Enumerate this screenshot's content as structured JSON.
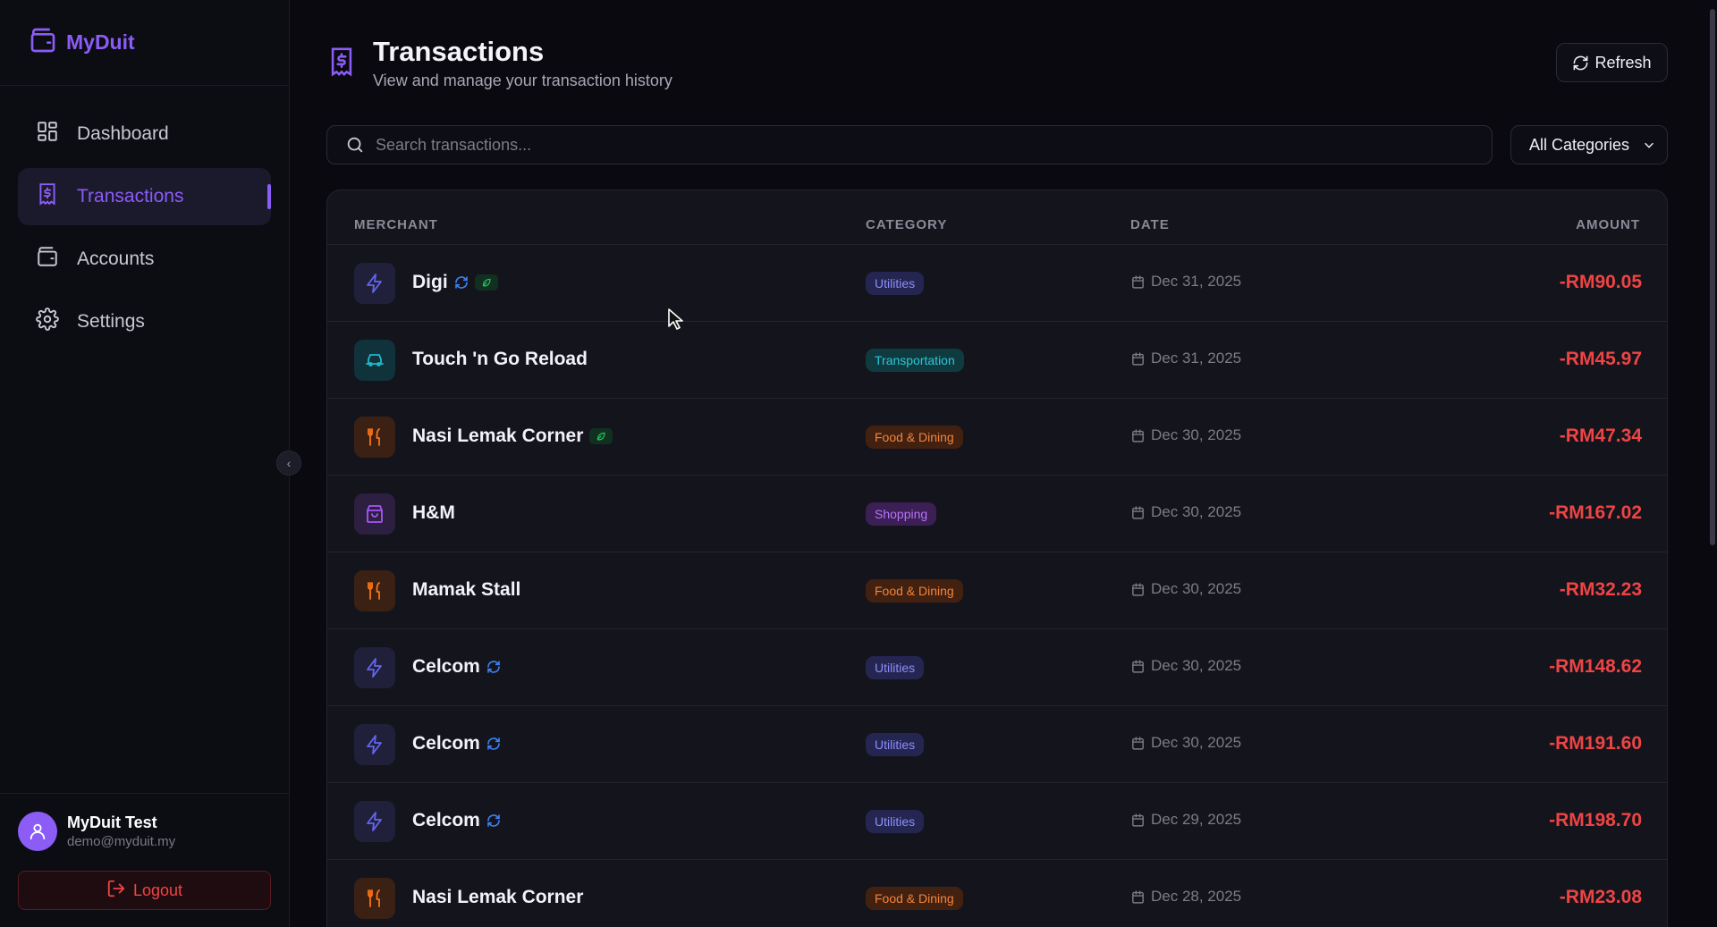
{
  "app": {
    "name": "MyDuit"
  },
  "sidebar": {
    "items": [
      {
        "label": "Dashboard",
        "icon": "grid-icon",
        "active": false
      },
      {
        "label": "Transactions",
        "icon": "receipt-dollar-icon",
        "active": true
      },
      {
        "label": "Accounts",
        "icon": "wallet-icon",
        "active": false
      },
      {
        "label": "Settings",
        "icon": "gear-icon",
        "active": false
      }
    ],
    "user": {
      "name": "MyDuit Test",
      "email": "demo@myduit.my"
    },
    "logout_label": "Logout"
  },
  "header": {
    "title": "Transactions",
    "subtitle": "View and manage your transaction history",
    "refresh_label": "Refresh"
  },
  "filters": {
    "search_placeholder": "Search transactions...",
    "category_selected": "All Categories"
  },
  "table": {
    "columns": {
      "merchant": "MERCHANT",
      "category": "CATEGORY",
      "date": "DATE",
      "amount": "AMOUNT"
    },
    "rows": [
      {
        "merchant": "Digi",
        "kind": "utilities",
        "category": "Utilities",
        "date": "Dec 31, 2025",
        "amount": "-RM90.05",
        "recurring": true,
        "eco": true
      },
      {
        "merchant": "Touch 'n Go Reload",
        "kind": "transport",
        "category": "Transportation",
        "date": "Dec 31, 2025",
        "amount": "-RM45.97",
        "recurring": false,
        "eco": false
      },
      {
        "merchant": "Nasi Lemak Corner",
        "kind": "food",
        "category": "Food & Dining",
        "date": "Dec 30, 2025",
        "amount": "-RM47.34",
        "recurring": false,
        "eco": true
      },
      {
        "merchant": "H&M",
        "kind": "shopping",
        "category": "Shopping",
        "date": "Dec 30, 2025",
        "amount": "-RM167.02",
        "recurring": false,
        "eco": false
      },
      {
        "merchant": "Mamak Stall",
        "kind": "food",
        "category": "Food & Dining",
        "date": "Dec 30, 2025",
        "amount": "-RM32.23",
        "recurring": false,
        "eco": false
      },
      {
        "merchant": "Celcom",
        "kind": "utilities",
        "category": "Utilities",
        "date": "Dec 30, 2025",
        "amount": "-RM148.62",
        "recurring": true,
        "eco": false
      },
      {
        "merchant": "Celcom",
        "kind": "utilities",
        "category": "Utilities",
        "date": "Dec 30, 2025",
        "amount": "-RM191.60",
        "recurring": true,
        "eco": false
      },
      {
        "merchant": "Celcom",
        "kind": "utilities",
        "category": "Utilities",
        "date": "Dec 29, 2025",
        "amount": "-RM198.70",
        "recurring": true,
        "eco": false
      },
      {
        "merchant": "Nasi Lemak Corner",
        "kind": "food",
        "category": "Food & Dining",
        "date": "Dec 28, 2025",
        "amount": "-RM23.08",
        "recurring": false,
        "eco": false
      }
    ]
  },
  "colors": {
    "accent": "#8b5cf6",
    "negative_amount": "#ef4444",
    "utilities": "#6366f1",
    "transport": "#22b8cf",
    "food": "#f97316",
    "shopping": "#a855f7"
  }
}
